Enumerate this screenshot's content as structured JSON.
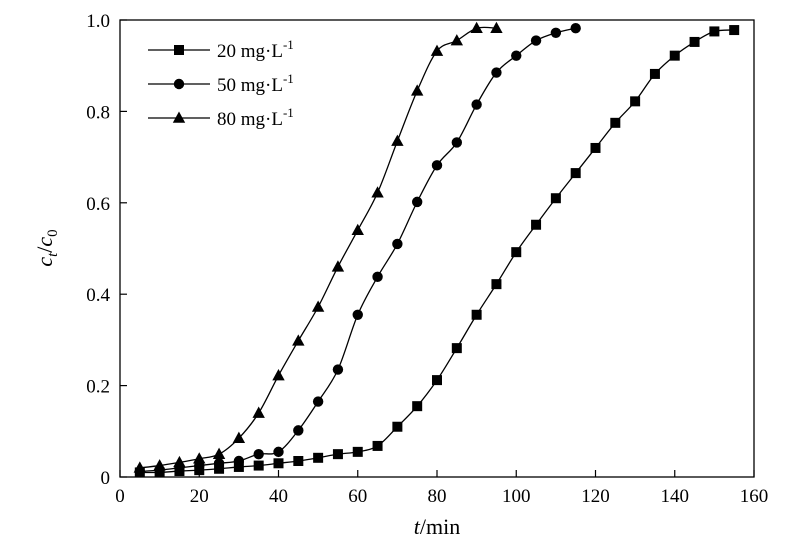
{
  "chart_data": {
    "type": "line",
    "title": "",
    "xlabel": {
      "italic": "t",
      "rest": "/min"
    },
    "ylabel": {
      "c": "c",
      "sub_t": "t",
      "slash": "/",
      "c0": "c",
      "sub_0": "0"
    },
    "xlim": [
      0,
      160
    ],
    "ylim": [
      0,
      1.0
    ],
    "x_ticks": [
      0,
      20,
      40,
      60,
      80,
      100,
      120,
      140,
      160
    ],
    "x_tick_labels": [
      "0",
      "20",
      "40",
      "60",
      "80",
      "100",
      "120",
      "140",
      "160"
    ],
    "y_ticks": [
      0,
      0.2,
      0.4,
      0.6,
      0.8,
      1.0
    ],
    "y_tick_labels": [
      "0",
      "0.2",
      "0.4",
      "0.6",
      "0.8",
      "1.0"
    ],
    "grid": false,
    "legend_position": "top-left",
    "series": [
      {
        "name": "20 mg·L",
        "sup": "-1",
        "marker": "square",
        "x": [
          5,
          10,
          15,
          20,
          25,
          30,
          35,
          40,
          45,
          50,
          55,
          60,
          65,
          70,
          75,
          80,
          85,
          90,
          95,
          100,
          105,
          110,
          115,
          120,
          125,
          130,
          135,
          140,
          145,
          150,
          155
        ],
        "y": [
          0.01,
          0.01,
          0.013,
          0.015,
          0.018,
          0.022,
          0.025,
          0.03,
          0.035,
          0.042,
          0.05,
          0.055,
          0.068,
          0.11,
          0.155,
          0.212,
          0.282,
          0.355,
          0.422,
          0.492,
          0.552,
          0.61,
          0.665,
          0.72,
          0.775,
          0.822,
          0.882,
          0.922,
          0.952,
          0.975,
          0.978
        ]
      },
      {
        "name": "50 mg·L",
        "sup": "-1",
        "marker": "circle",
        "x": [
          5,
          10,
          15,
          20,
          25,
          30,
          35,
          40,
          45,
          50,
          55,
          60,
          65,
          70,
          75,
          80,
          85,
          90,
          95,
          100,
          105,
          110,
          115
        ],
        "y": [
          0.012,
          0.015,
          0.02,
          0.025,
          0.03,
          0.035,
          0.05,
          0.055,
          0.102,
          0.165,
          0.235,
          0.355,
          0.438,
          0.51,
          0.602,
          0.682,
          0.732,
          0.815,
          0.885,
          0.922,
          0.955,
          0.972,
          0.982
        ]
      },
      {
        "name": "80 mg·L",
        "sup": "-1",
        "marker": "triangle",
        "x": [
          5,
          10,
          15,
          20,
          25,
          30,
          35,
          40,
          45,
          50,
          55,
          60,
          65,
          70,
          75,
          80,
          85,
          90,
          95
        ],
        "y": [
          0.02,
          0.025,
          0.032,
          0.04,
          0.05,
          0.085,
          0.14,
          0.222,
          0.298,
          0.372,
          0.46,
          0.54,
          0.622,
          0.735,
          0.845,
          0.932,
          0.955,
          0.982,
          0.982
        ]
      }
    ]
  }
}
